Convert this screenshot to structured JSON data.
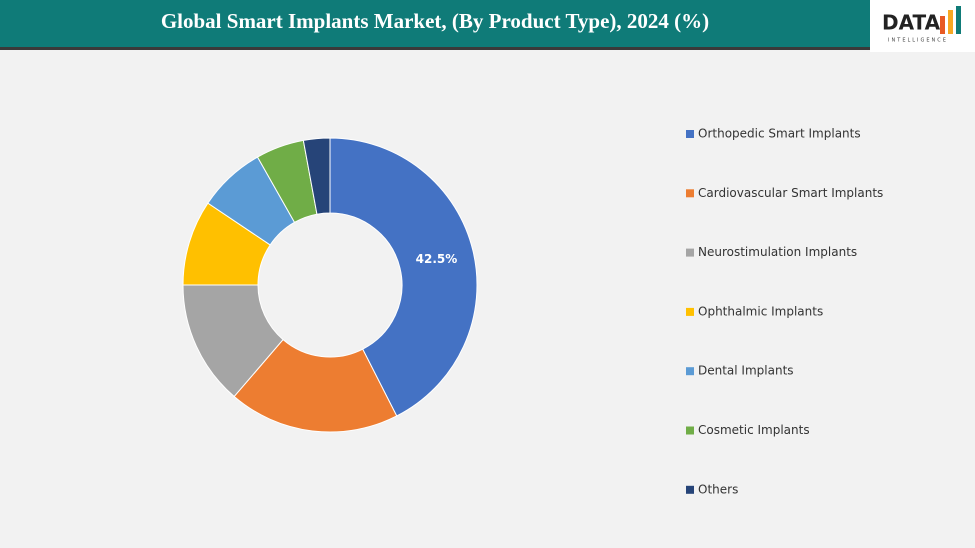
{
  "chart_data": {
    "type": "donut",
    "title": "Global Smart Implants Market, (By Product Type), 2024 (%)",
    "logo": {
      "name": "DATA",
      "tagline": "INTELLIGENCE"
    },
    "categories": [
      "Orthopedic Smart Implants",
      "Cardiovascular Smart Implants",
      "Neurostimulation Implants",
      "Ophthalmic Implants",
      "Dental Implants",
      "Cosmetic Implants",
      "Others"
    ],
    "values": [
      42.5,
      18.8,
      13.7,
      9.4,
      7.4,
      5.3,
      2.9
    ],
    "value_labels": [
      "42.5%",
      null,
      null,
      null,
      null,
      null,
      null
    ],
    "colors": [
      "#4472c4",
      "#ed7d31",
      "#a5a5a5",
      "#ffc000",
      "#5b9bd5",
      "#70ad47",
      "#264478"
    ],
    "legend": "right"
  }
}
